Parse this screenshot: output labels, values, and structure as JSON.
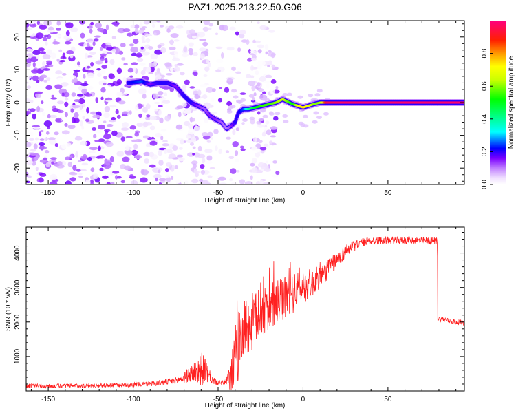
{
  "figure": {
    "title": "PAZ1.2025.213.22.50.G06"
  },
  "chart_data": [
    {
      "type": "heatmap",
      "title": "PAZ1.2025.213.22.50.G06",
      "xlabel": "Height of straight line (km)",
      "ylabel": "Frequency (Hz)",
      "xlim": [
        -163,
        95
      ],
      "ylim": [
        -25,
        25
      ],
      "xticks": [
        -150,
        -100,
        -50,
        0,
        50
      ],
      "yticks": [
        -20,
        -10,
        0,
        10,
        20
      ],
      "colorbar": {
        "label": "Normalized spectral amplitude",
        "range": [
          0,
          1
        ],
        "ticks": [
          0.0,
          0.2,
          0.4,
          0.6,
          0.8
        ],
        "tick_labels": [
          "0.0",
          "0.2",
          "0.4",
          "0.6",
          "0.8"
        ],
        "colormap": [
          "#ffffff",
          "#d9b3ff",
          "#8000ff",
          "#0000ff",
          "#00ffff",
          "#00ff00",
          "#ffff00",
          "#ff8000",
          "#ff0000",
          "#ff0080"
        ]
      },
      "ridge": {
        "description_points_x": [
          -103,
          -95,
          -90,
          -85,
          -80,
          -75,
          -70,
          -66,
          -62,
          -58,
          -55,
          -52,
          -48,
          -45,
          -42,
          -40,
          -38,
          -35,
          -32,
          -28,
          -24,
          -20,
          -16,
          -12,
          -10,
          -6,
          -3,
          0,
          3,
          6,
          10,
          14,
          20,
          40,
          60,
          80,
          95
        ],
        "description_points_y": [
          6,
          6.5,
          5.5,
          6,
          6,
          5,
          2,
          0,
          -1,
          -2,
          -4,
          -5,
          -6,
          -8,
          -7,
          -6,
          -3,
          -2,
          -2,
          -1.5,
          -1,
          -0.5,
          0,
          1,
          0.5,
          -0.5,
          -1,
          -1.5,
          -1,
          -0.5,
          0,
          0,
          0,
          0,
          0,
          0,
          0
        ],
        "description_points_amp": [
          0.2,
          0.25,
          0.15,
          0.2,
          0.2,
          0.15,
          0.2,
          0.2,
          0.15,
          0.12,
          0.15,
          0.15,
          0.12,
          0.1,
          0.15,
          0.2,
          0.2,
          0.25,
          0.4,
          0.5,
          0.55,
          0.55,
          0.6,
          0.65,
          0.6,
          0.5,
          0.7,
          0.75,
          0.7,
          0.6,
          0.6,
          0.95,
          0.97,
          0.98,
          0.98,
          0.98,
          0.98
        ],
        "steady_frequency_from_x": 14,
        "steady_frequency_value": 0
      },
      "noise_region_x": [
        -163,
        -45
      ],
      "noise_amplitude_range": [
        0.0,
        0.15
      ]
    },
    {
      "type": "line",
      "title": "",
      "xlabel": "Height of straight line (km)",
      "ylabel": "SNR (10 * v/v)",
      "xlim": [
        -163,
        95
      ],
      "ylim": [
        0,
        4750
      ],
      "xticks": [
        -150,
        -100,
        -50,
        0,
        50
      ],
      "yticks": [
        1000,
        2000,
        3000,
        4000
      ],
      "line_color": "#ff2020",
      "series": [
        {
          "name": "",
          "x": [
            -163,
            -150,
            -140,
            -130,
            -120,
            -110,
            -100,
            -90,
            -85,
            -80,
            -75,
            -70,
            -66,
            -62,
            -60,
            -58,
            -56,
            -54,
            -52,
            -50,
            -48,
            -46,
            -44,
            -42,
            -40,
            -38,
            -36,
            -34,
            -32,
            -30,
            -28,
            -26,
            -24,
            -22,
            -20,
            -18,
            -16,
            -14,
            -12,
            -10,
            -8,
            -6,
            -4,
            -2,
            0,
            2,
            4,
            6,
            8,
            10,
            12,
            14,
            16,
            18,
            20,
            22,
            24,
            26,
            28,
            30,
            32,
            34,
            36,
            38,
            40,
            45,
            50,
            55,
            60,
            65,
            70,
            75,
            79,
            80,
            85,
            90,
            95
          ],
          "mean": [
            150,
            140,
            150,
            150,
            160,
            170,
            180,
            210,
            230,
            260,
            300,
            380,
            500,
            600,
            650,
            600,
            480,
            350,
            280,
            250,
            240,
            250,
            320,
            500,
            900,
            1300,
            1600,
            1800,
            1900,
            2000,
            2100,
            2200,
            2250,
            2300,
            2400,
            2450,
            2500,
            2600,
            2650,
            2700,
            2750,
            2800,
            2900,
            2950,
            3000,
            3050,
            3100,
            3150,
            3200,
            3300,
            3400,
            3500,
            3600,
            3700,
            3800,
            3900,
            4000,
            4100,
            4150,
            4200,
            4250,
            4300,
            4320,
            4340,
            4350,
            4360,
            4370,
            4370,
            4370,
            4370,
            4360,
            4350,
            4350,
            2100,
            2050,
            2000,
            1980
          ],
          "noise": [
            60,
            60,
            60,
            60,
            60,
            60,
            70,
            70,
            80,
            90,
            110,
            160,
            250,
            400,
            500,
            400,
            250,
            150,
            100,
            80,
            80,
            100,
            250,
            600,
            1000,
            1000,
            900,
            900,
            850,
            850,
            800,
            750,
            700,
            700,
            700,
            700,
            650,
            650,
            600,
            600,
            600,
            550,
            550,
            500,
            500,
            450,
            450,
            400,
            400,
            350,
            300,
            300,
            280,
            260,
            240,
            220,
            200,
            180,
            160,
            150,
            140,
            130,
            120,
            120,
            110,
            110,
            110,
            110,
            110,
            110,
            110,
            110,
            110,
            80,
            80,
            80,
            80
          ]
        }
      ]
    }
  ]
}
